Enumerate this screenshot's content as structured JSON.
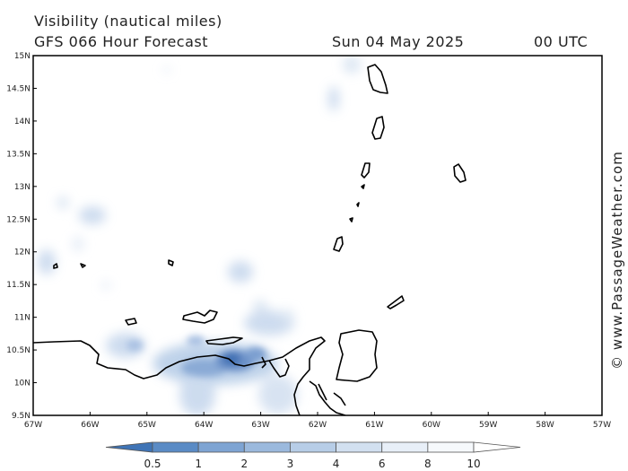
{
  "header": {
    "title": "Visibility (nautical miles)",
    "subtitle": "GFS 066 Hour Forecast",
    "date": "Sun 04 May 2025",
    "time": "00 UTC"
  },
  "copyright": "© www.PassageWeather.com",
  "map": {
    "lat_labels": [
      "15N",
      "14.5N",
      "14N",
      "13.5N",
      "13N",
      "12.5N",
      "12N",
      "11.5N",
      "11N",
      "10.5N",
      "10N",
      "9.5N"
    ],
    "lon_labels": [
      "67W",
      "66W",
      "65W",
      "64W",
      "63W",
      "62W",
      "61W",
      "60W",
      "59W",
      "58W",
      "57W"
    ],
    "lat_range": [
      9.5,
      15
    ],
    "lon_range": [
      -67,
      -57
    ]
  },
  "legend": {
    "labels": [
      "0.5",
      "1",
      "2",
      "3",
      "4",
      "6",
      "8",
      "10"
    ],
    "colors": [
      "#3f74b6",
      "#5a8bc5",
      "#7ea4d3",
      "#9bb9dd",
      "#b7cde7",
      "#d2e0f0",
      "#e8eff8",
      "#f6f9fc",
      "#ffffff"
    ]
  }
}
